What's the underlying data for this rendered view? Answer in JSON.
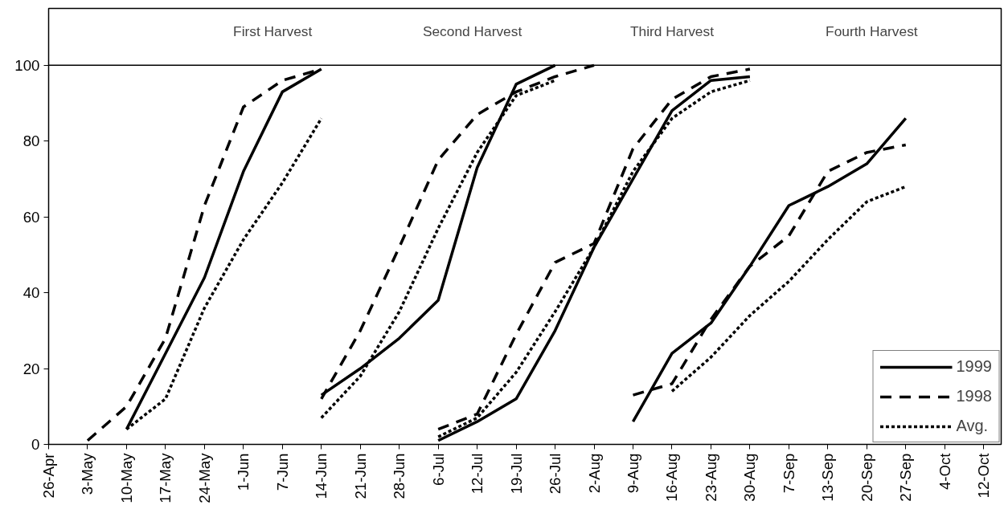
{
  "chart_data": {
    "type": "line",
    "categories": [
      "26-Apr",
      "3-May",
      "10-May",
      "17-May",
      "24-May",
      "1-Jun",
      "7-Jun",
      "14-Jun",
      "21-Jun",
      "28-Jun",
      "6-Jul",
      "12-Jul",
      "19-Jul",
      "26-Jul",
      "2-Aug",
      "9-Aug",
      "16-Aug",
      "23-Aug",
      "30-Aug",
      "7-Sep",
      "13-Sep",
      "20-Sep",
      "27-Sep",
      "4-Oct",
      "12-Oct"
    ],
    "series": [
      {
        "name": "1999",
        "color": "#000000",
        "line_style": "solid",
        "values": [
          null,
          null,
          4,
          24,
          44,
          72,
          93,
          99,
          null,
          null,
          null,
          null,
          null,
          null,
          null,
          null,
          null,
          null,
          null,
          null,
          null,
          null,
          null,
          null,
          null
        ]
      },
      {
        "name": "1998",
        "color": "#000000",
        "line_style": "dashed",
        "values": [
          null,
          1,
          10,
          28,
          63,
          89,
          96,
          99,
          null,
          null,
          null,
          null,
          null,
          null,
          null,
          null,
          null,
          null,
          null,
          null,
          null,
          null,
          null,
          null,
          null
        ]
      },
      {
        "name": "Avg.",
        "color": "#000000",
        "line_style": "dotted",
        "values": [
          null,
          null,
          4,
          12,
          36,
          54,
          69,
          86,
          null,
          null,
          null,
          null,
          null,
          null,
          null,
          null,
          null,
          null,
          null,
          null,
          null,
          null,
          null,
          null,
          null
        ]
      },
      {
        "color": "#000000",
        "line_style": "solid",
        "values": [
          null,
          null,
          null,
          null,
          null,
          null,
          null,
          13,
          20,
          28,
          38,
          73,
          95,
          100,
          null,
          null,
          null,
          null,
          null,
          null,
          null,
          null,
          null,
          null,
          null
        ]
      },
      {
        "color": "#000000",
        "line_style": "dashed",
        "values": [
          null,
          null,
          null,
          null,
          null,
          null,
          null,
          12,
          30,
          52,
          75,
          87,
          93,
          97,
          100,
          null,
          null,
          null,
          null,
          null,
          null,
          null,
          null,
          null,
          null
        ]
      },
      {
        "color": "#000000",
        "line_style": "dotted",
        "values": [
          null,
          null,
          null,
          null,
          null,
          null,
          null,
          7,
          18,
          35,
          57,
          77,
          92,
          96,
          null,
          null,
          null,
          null,
          null,
          null,
          null,
          null,
          null,
          null,
          null
        ]
      },
      {
        "color": "#000000",
        "line_style": "solid",
        "values": [
          null,
          null,
          null,
          null,
          null,
          null,
          null,
          null,
          null,
          null,
          1,
          6,
          12,
          30,
          52,
          70,
          88,
          96,
          97,
          null,
          null,
          null,
          null,
          null,
          null
        ]
      },
      {
        "color": "#000000",
        "line_style": "dashed",
        "values": [
          null,
          null,
          null,
          null,
          null,
          null,
          null,
          null,
          null,
          null,
          4,
          8,
          29,
          48,
          53,
          78,
          91,
          97,
          99,
          null,
          null,
          null,
          null,
          null,
          null
        ]
      },
      {
        "color": "#000000",
        "line_style": "dotted",
        "values": [
          null,
          null,
          null,
          null,
          null,
          null,
          null,
          null,
          null,
          null,
          2,
          7,
          19,
          35,
          52,
          72,
          86,
          93,
          96,
          null,
          null,
          null,
          null,
          null,
          null
        ]
      },
      {
        "color": "#000000",
        "line_style": "solid",
        "values": [
          null,
          null,
          null,
          null,
          null,
          null,
          null,
          null,
          null,
          null,
          null,
          null,
          null,
          null,
          null,
          6,
          24,
          32,
          47,
          63,
          68,
          74,
          86,
          null,
          null
        ]
      },
      {
        "color": "#000000",
        "line_style": "dashed",
        "values": [
          null,
          null,
          null,
          null,
          null,
          null,
          null,
          null,
          null,
          null,
          null,
          null,
          null,
          null,
          null,
          13,
          16,
          33,
          47,
          55,
          72,
          77,
          79,
          null,
          null
        ]
      },
      {
        "color": "#000000",
        "line_style": "dotted",
        "values": [
          null,
          null,
          null,
          null,
          null,
          null,
          null,
          null,
          null,
          null,
          null,
          null,
          null,
          null,
          null,
          null,
          14,
          23,
          34,
          43,
          54,
          64,
          68,
          null,
          null
        ]
      }
    ],
    "ylim": [
      0,
      115
    ],
    "yticks": [
      0,
      20,
      40,
      60,
      80,
      100
    ],
    "ref_lines": [
      {
        "axis": "y",
        "value": 100,
        "color": "#000000",
        "line_style": "solid"
      }
    ],
    "annotations": [
      "First Harvest",
      "Second Harvest",
      "Third Harvest",
      "Fourth Harvest"
    ],
    "grid": false,
    "legend": "bottom right",
    "marker": "none"
  }
}
